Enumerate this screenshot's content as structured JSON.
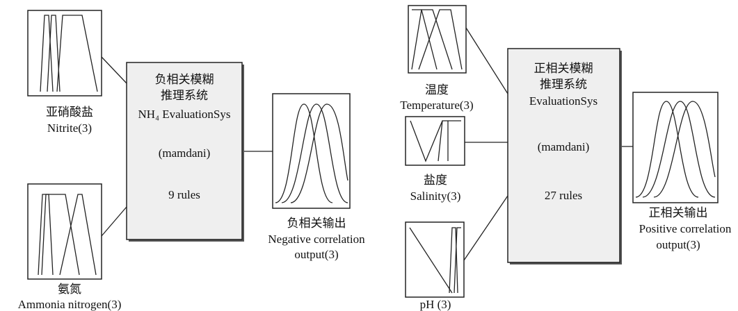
{
  "left_system": {
    "inputs": [
      {
        "name_cn": "亚硝酸盐",
        "name_en": "Nitrite(3)"
      },
      {
        "name_cn": "氨氮",
        "name_en": "Ammonia nitrogen(3)"
      }
    ],
    "engine": {
      "lines": [
        "负相关模糊",
        "推理系统",
        "NH₄ EvaluationSys"
      ],
      "method": "(mamdani)",
      "rules": "9 rules"
    },
    "output": {
      "name_cn": "负相关输出",
      "name_en": [
        "Negative correlation",
        "output(3)"
      ]
    }
  },
  "right_system": {
    "inputs": [
      {
        "name_cn": "温度",
        "name_en": "Temperature(3)"
      },
      {
        "name_cn": "盐度",
        "name_en": "Salinity(3)"
      },
      {
        "name_en": "pH (3)"
      }
    ],
    "engine": {
      "lines": [
        "正相关模糊",
        "推理系统",
        "EvaluationSys"
      ],
      "method": "(mamdani)",
      "rules": "27 rules"
    },
    "output": {
      "name_cn": "正相关输出",
      "name_en": [
        "Positive correlation",
        "output(3)"
      ]
    }
  }
}
